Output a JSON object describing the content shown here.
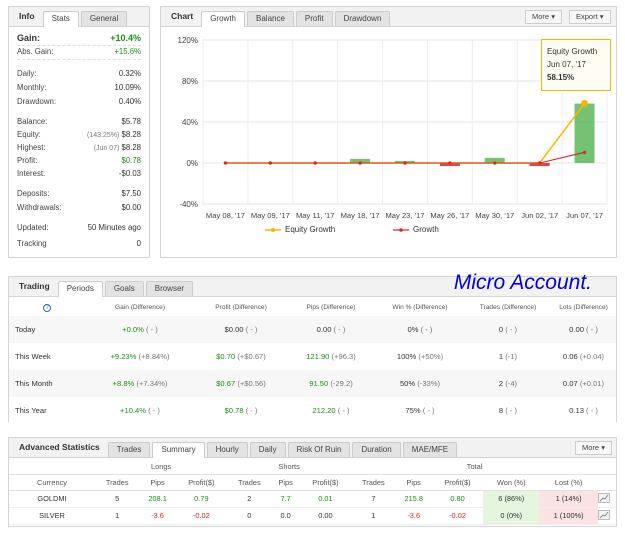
{
  "info": {
    "tabs": [
      "Info",
      "Stats",
      "General"
    ],
    "rows": [
      {
        "label": "Gain:",
        "value": "+10.4%"
      },
      {
        "label": "Abs. Gain:",
        "value": "+15.6%"
      },
      {
        "label": "Daily:",
        "value": "0.32%"
      },
      {
        "label": "Monthly:",
        "value": "10.09%"
      },
      {
        "label": "Drawdown:",
        "value": "0.40%"
      },
      {
        "label": "Balance:",
        "value": "$5.78"
      },
      {
        "label": "Equity:",
        "note": "(143.25%)",
        "value": "$8.28"
      },
      {
        "label": "Highest:",
        "note": "(Jun 07)",
        "value": "$8.28"
      },
      {
        "label": "Profit:",
        "value": "$0.78"
      },
      {
        "label": "Interest:",
        "value": "-$0.03"
      },
      {
        "label": "Deposits:",
        "value": "$7.50"
      },
      {
        "label": "Withdrawals:",
        "value": "$0.00"
      },
      {
        "label": "Updated:",
        "value": "50 Minutes ago"
      },
      {
        "label": "Tracking",
        "value": "0"
      }
    ]
  },
  "chart_panel": {
    "tabs": [
      "Chart",
      "Growth",
      "Balance",
      "Profit",
      "Drawdown"
    ],
    "more_label": "More",
    "export_label": "Export",
    "tooltip": {
      "title": "Equity Growth",
      "date": "Jun 07, '17",
      "value": "58.15%"
    },
    "legend": [
      "Equity Growth",
      "Growth"
    ],
    "colors": {
      "equity": "#f5b800",
      "growth": "#d8242a",
      "bar_pos": "#5cb85c",
      "bar_neg": "#d8242a"
    }
  },
  "chart_data": {
    "type": "line",
    "categories": [
      "May 08, '17",
      "May 09, '17",
      "May 11, '17",
      "May 18, '17",
      "May 23, '17",
      "May 26, '17",
      "May 30, '17",
      "Jun 02, '17",
      "Jun 07, '17"
    ],
    "yticks": [
      "120%",
      "80%",
      "40%",
      "0%",
      "-40%"
    ],
    "ylim": [
      -40,
      120
    ],
    "series": [
      {
        "name": "Equity Growth",
        "values": [
          0,
          0,
          0,
          0,
          0,
          0,
          0,
          0,
          58.15
        ]
      },
      {
        "name": "Growth",
        "values": [
          0,
          0,
          0,
          0,
          0,
          0,
          0,
          0,
          10.4
        ]
      }
    ],
    "bars": [
      0,
      0,
      0,
      4,
      2,
      -3,
      5,
      -3,
      58
    ]
  },
  "trading": {
    "tabs": [
      "Trading",
      "Periods",
      "Goals",
      "Browser"
    ],
    "watermark": "Micro Account.",
    "help_icon": "?",
    "headers": [
      "Gain (Difference)",
      "Profit (Difference)",
      "Pips (Difference)",
      "Win % (Difference)",
      "Trades (Difference)",
      "Lots (Difference)"
    ],
    "rows": [
      {
        "period": "Today",
        "gain": "+0.0%",
        "gain_d": "( - )",
        "profit": "$0.00",
        "profit_d": "( - )",
        "pips": "0.00",
        "pips_d": "( - )",
        "win": "0%",
        "win_d": "( - )",
        "trades": "0",
        "trades_d": "( - )",
        "lots": "0.00",
        "lots_d": "( - )"
      },
      {
        "period": "This Week",
        "gain": "+9.23%",
        "gain_d": "(+8.84%)",
        "profit": "$0.70",
        "profit_d": "(+$0.67)",
        "pips": "121.90",
        "pips_d": "(+96.3)",
        "win": "100%",
        "win_d": "(+50%)",
        "trades": "1",
        "trades_d": "(-1)",
        "lots": "0.06",
        "lots_d": "(+0.04)"
      },
      {
        "period": "This Month",
        "gain": "+8.8%",
        "gain_d": "(+7.34%)",
        "profit": "$0.67",
        "profit_d": "(+$0.56)",
        "pips": "91.50",
        "pips_d": "(-29.2)",
        "win": "50%",
        "win_d": "(-33%)",
        "trades": "2",
        "trades_d": "(-4)",
        "lots": "0.07",
        "lots_d": "(+0.01)"
      },
      {
        "period": "This Year",
        "gain": "+10.4%",
        "gain_d": "( - )",
        "profit": "$0.78",
        "profit_d": "( - )",
        "pips": "212.20",
        "pips_d": "( - )",
        "win": "75%",
        "win_d": "( - )",
        "trades": "8",
        "trades_d": "( - )",
        "lots": "0.13",
        "lots_d": "( - )"
      }
    ]
  },
  "advanced": {
    "title": "Advanced Statistics",
    "tabs": [
      "Trades",
      "Summary",
      "Hourly",
      "Daily",
      "Risk Of Ruin",
      "Duration",
      "MAE/MFE"
    ],
    "more_label": "More",
    "groups": [
      "Longs",
      "Shorts",
      "Total"
    ],
    "headers": [
      "Currency",
      "Trades",
      "Pips",
      "Profit($)",
      "Trades",
      "Pips",
      "Profit($)",
      "Trades",
      "Pips",
      "Profit($)",
      "Won (%)",
      "Lost (%)"
    ],
    "rows": [
      [
        "GOLDMI",
        "5",
        "208.1",
        "0.79",
        "2",
        "7.7",
        "0.01",
        "7",
        "215.8",
        "0.80",
        "6 (86%)",
        "1 (14%)"
      ],
      [
        "SILVER",
        "1",
        "-3.6",
        "-0.02",
        "0",
        "0.0",
        "0.00",
        "1",
        "-3.6",
        "-0.02",
        "0 (0%)",
        "1 (100%)"
      ]
    ]
  }
}
